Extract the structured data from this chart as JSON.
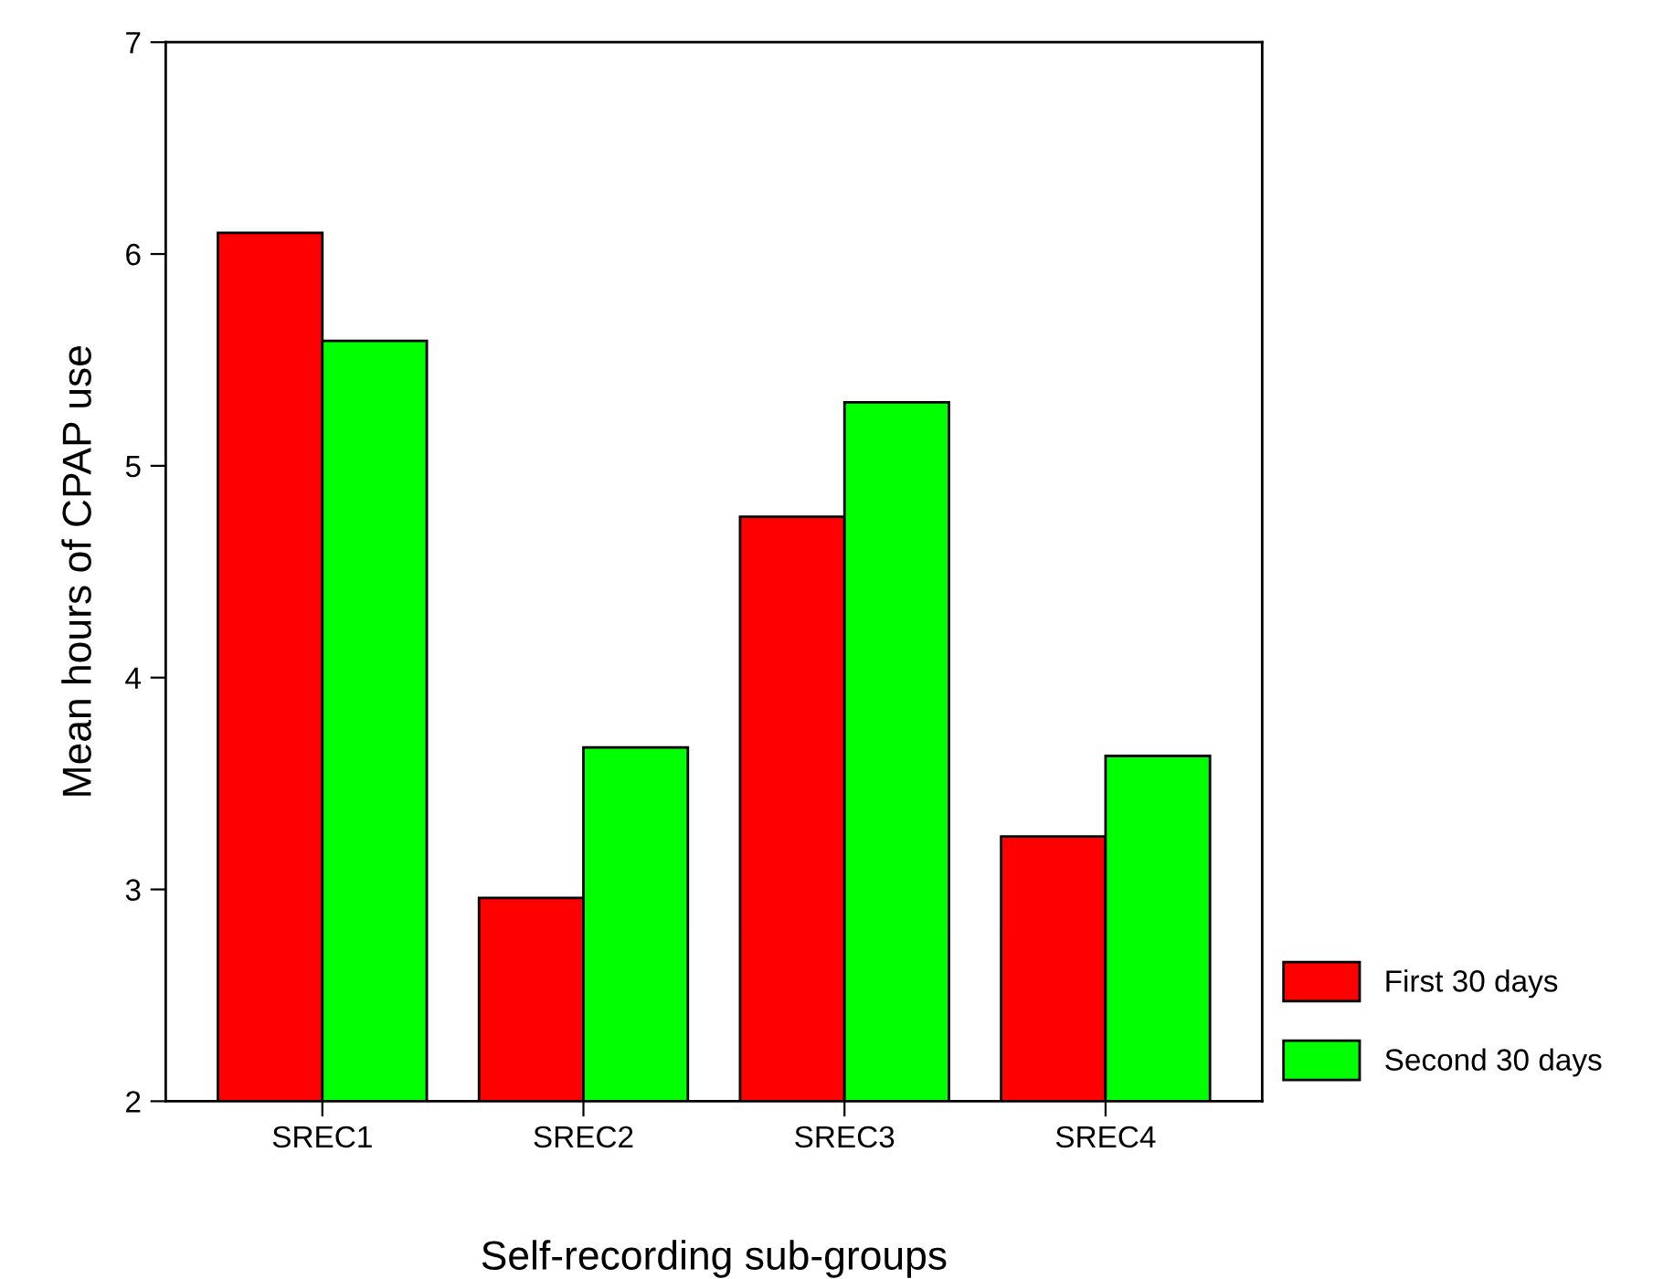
{
  "chart_data": {
    "type": "bar",
    "xlabel": "Self-recording sub-groups",
    "ylabel": "Mean hours of CPAP use",
    "categories": [
      "SREC1",
      "SREC2",
      "SREC3",
      "SREC4"
    ],
    "series": [
      {
        "name": "First 30 days",
        "color": "#ff0000",
        "values": [
          6.1,
          2.96,
          4.76,
          3.25
        ]
      },
      {
        "name": "Second 30 days",
        "color": "#00ff00",
        "values": [
          5.59,
          3.67,
          5.3,
          3.63
        ]
      }
    ],
    "ylim": [
      2,
      7
    ],
    "yticks": [
      2,
      3,
      4,
      5,
      6,
      7
    ],
    "grid": false,
    "legend": "bottom right"
  }
}
